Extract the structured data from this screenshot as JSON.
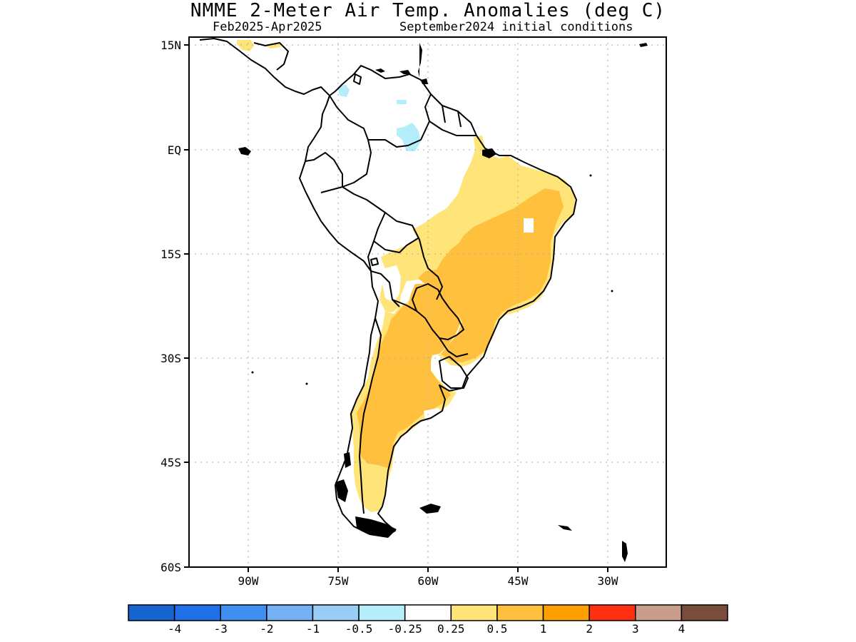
{
  "title": "NMME 2-Meter Air Temp. Anomalies (deg C)",
  "subtitle_left": "Feb2025-Apr2025",
  "subtitle_right": "September2024 initial conditions",
  "axes": {
    "lat_ticks": [
      "15N",
      "EQ",
      "15S",
      "30S",
      "45S",
      "60S"
    ],
    "lon_ticks": [
      "90W",
      "75W",
      "60W",
      "45W",
      "30W"
    ]
  },
  "legend": {
    "labels": [
      "-4",
      "-3",
      "-2",
      "-1",
      "-0.5",
      "-0.25",
      "0.25",
      "0.5",
      "1",
      "2",
      "3",
      "4"
    ],
    "colors": [
      "#1565d0",
      "#1e6fe8",
      "#3f8ff0",
      "#74b2f5",
      "#98cdf7",
      "#b3eefa",
      "#ffffff",
      "#ffe47a",
      "#ffc03d",
      "#ffa000",
      "#ff3010",
      "#c99c8c",
      "#7a4c3c"
    ]
  },
  "anomaly_colors": {
    "weak_warm": "#ffe47a",
    "moderate_warm": "#ffc03d",
    "weak_cool": "#b3eefa"
  }
}
